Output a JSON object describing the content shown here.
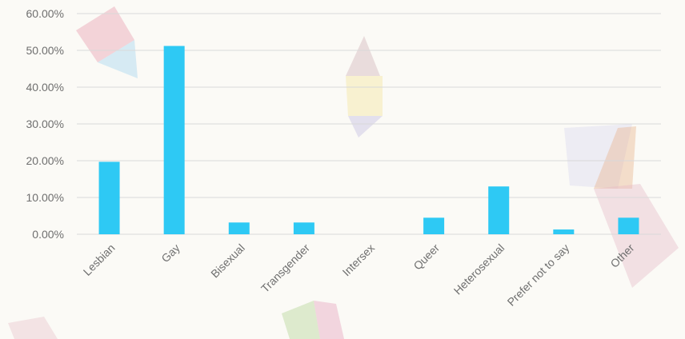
{
  "chart_data": {
    "type": "bar",
    "title": "",
    "xlabel": "",
    "ylabel": "",
    "categories": [
      "Lesbian",
      "Gay",
      "Bisexual",
      "Transgender",
      "Intersex",
      "Queer",
      "Heterosexual",
      "Prefer not to say",
      "Other"
    ],
    "values": [
      19.7,
      51.2,
      3.2,
      3.2,
      0.0,
      4.5,
      13.0,
      1.3,
      4.5
    ],
    "yticks": [
      "0.00%",
      "10.00%",
      "20.00%",
      "30.00%",
      "40.00%",
      "50.00%",
      "60.00%"
    ],
    "ylim": [
      0,
      60
    ],
    "grid": true,
    "legend": "none",
    "colors": {
      "bar": "#2ec9f4",
      "grid": "#d9d9d9",
      "text": "#6f6f6f",
      "background": "#fbfaf6"
    }
  }
}
